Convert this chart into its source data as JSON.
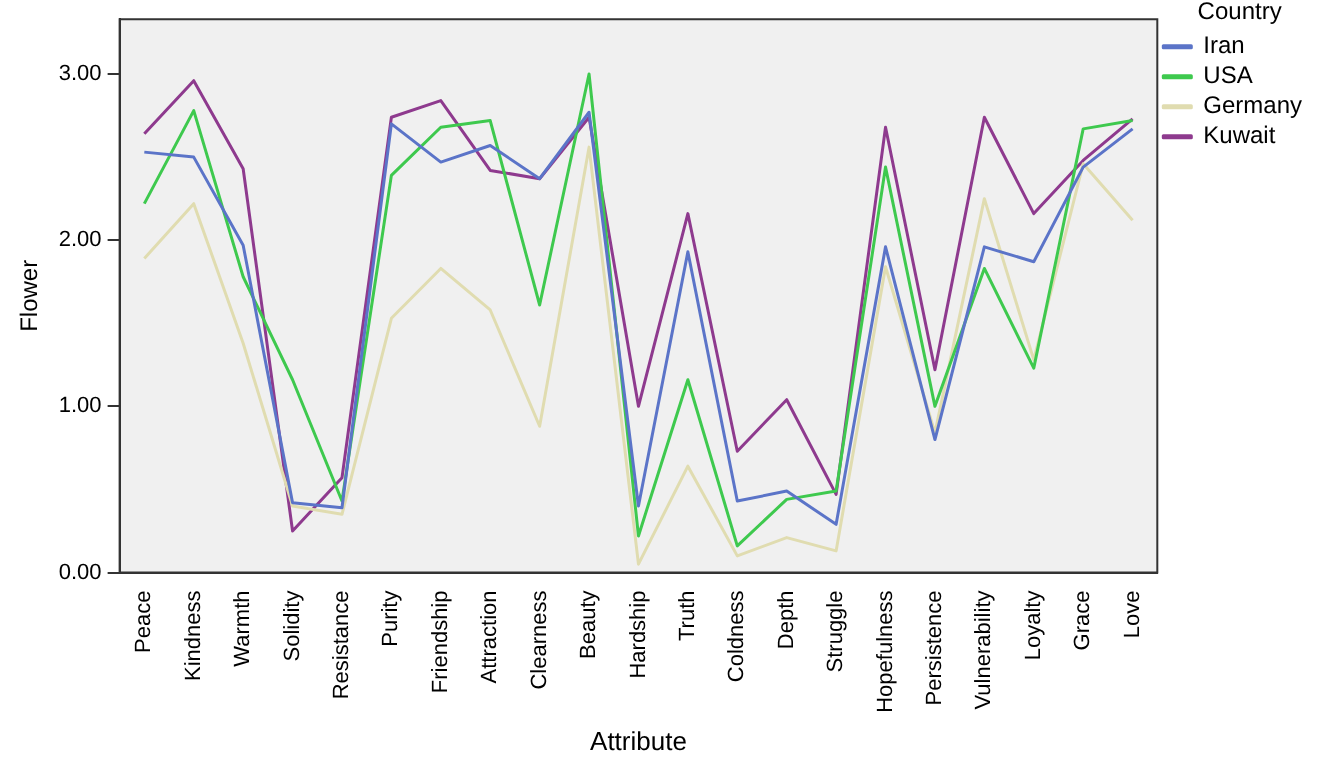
{
  "chart_data": {
    "type": "line",
    "xlabel": "Attribute",
    "ylabel": "Flower",
    "legend_title": "Country",
    "legend": "right",
    "grid": false,
    "marker": "none",
    "line_style": "solid",
    "categories": [
      "Peace",
      "Kindness",
      "Warmth",
      "Solidity",
      "Resistance",
      "Purity",
      "Friendship",
      "Attraction",
      "Clearness",
      "Beauty",
      "Hardship",
      "Truth",
      "Coldness",
      "Depth",
      "Struggle",
      "Hopefulness",
      "Persistence",
      "Vulnerability",
      "Loyalty",
      "Grace",
      "Love"
    ],
    "ylim": [
      0,
      3.33
    ],
    "yticks": [
      {
        "value": 0,
        "label": "0.00"
      },
      {
        "value": 1,
        "label": "1.00"
      },
      {
        "value": 2,
        "label": "2.00"
      },
      {
        "value": 3,
        "label": "3.00"
      }
    ],
    "series": [
      {
        "name": "Iran",
        "color": "#5b74c8",
        "values": [
          2.53,
          2.5,
          1.97,
          0.42,
          0.39,
          2.7,
          2.47,
          2.57,
          2.37,
          2.77,
          0.4,
          1.93,
          0.43,
          0.49,
          0.29,
          1.96,
          0.8,
          1.96,
          1.87,
          2.44,
          2.67
        ]
      },
      {
        "name": "USA",
        "color": "#3ec94e",
        "values": [
          2.22,
          2.78,
          1.78,
          1.16,
          0.43,
          2.39,
          2.68,
          2.72,
          1.61,
          3.0,
          0.22,
          1.16,
          0.16,
          0.44,
          0.49,
          2.44,
          1.0,
          1.83,
          1.23,
          2.67,
          2.72
        ]
      },
      {
        "name": "Germany",
        "color": "#e0dcb0",
        "values": [
          1.89,
          2.22,
          1.38,
          0.4,
          0.35,
          1.53,
          1.83,
          1.58,
          0.88,
          2.56,
          0.05,
          0.64,
          0.1,
          0.21,
          0.13,
          1.84,
          0.84,
          2.25,
          1.28,
          2.46,
          2.12
        ]
      },
      {
        "name": "Kuwait",
        "color": "#8e3a8e",
        "values": [
          2.64,
          2.96,
          2.43,
          0.25,
          0.57,
          2.74,
          2.84,
          2.42,
          2.37,
          2.74,
          1.0,
          2.16,
          0.73,
          1.04,
          0.47,
          2.68,
          1.22,
          2.74,
          2.16,
          2.48,
          2.73
        ]
      }
    ]
  }
}
